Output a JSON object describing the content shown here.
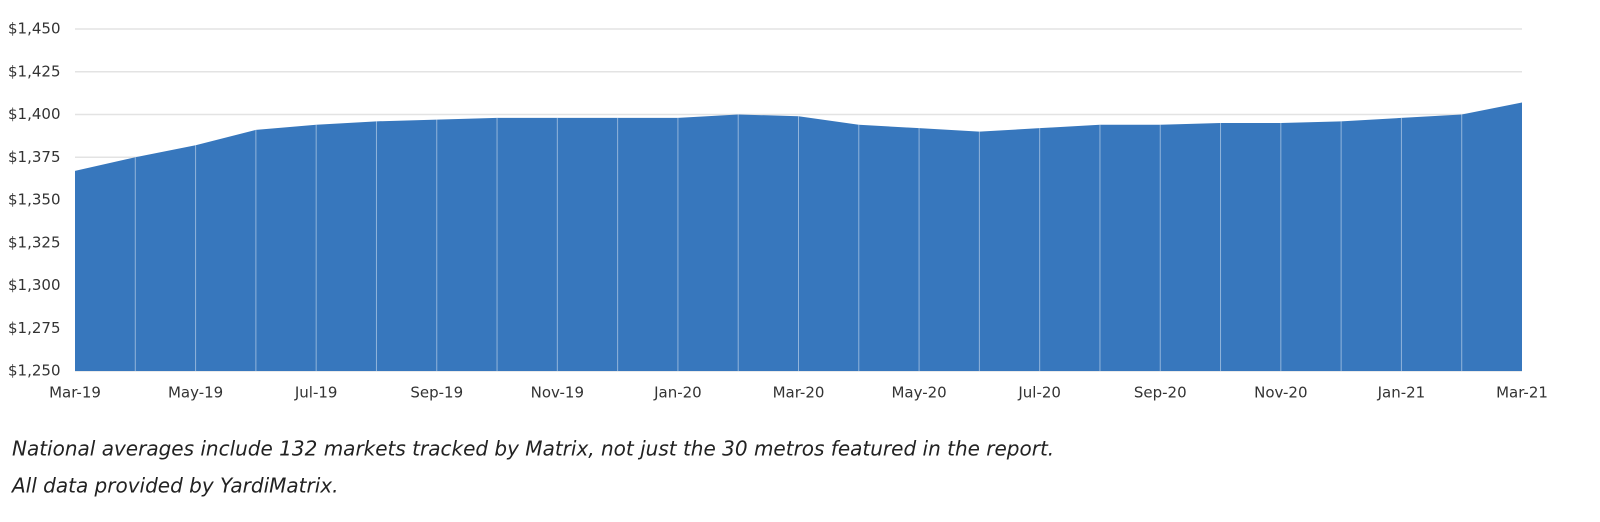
{
  "chart_data": {
    "type": "area",
    "categories": [
      "Mar-19",
      null,
      "May-19",
      null,
      "Jul-19",
      null,
      "Sep-19",
      null,
      "Nov-19",
      null,
      "Jan-20",
      null,
      "Mar-20",
      null,
      "May-20",
      null,
      "Jul-20",
      null,
      "Sep-20",
      null,
      "Nov-20",
      null,
      "Jan-21",
      null,
      "Mar-21"
    ],
    "values": [
      1367,
      1375,
      1382,
      1391,
      1394,
      1396,
      1397,
      1398,
      1398,
      1398,
      1398,
      1400,
      1399,
      1394,
      1392,
      1390,
      1392,
      1394,
      1394,
      1395,
      1395,
      1396,
      1398,
      1400,
      1407
    ],
    "color": "#3777bd",
    "ylim": [
      1250,
      1450
    ],
    "yticks": [
      {
        "value": 1250,
        "label": "$1,250"
      },
      {
        "value": 1275,
        "label": "$1,275"
      },
      {
        "value": 1300,
        "label": "$1,300"
      },
      {
        "value": 1325,
        "label": "$1,325"
      },
      {
        "value": 1350,
        "label": "$1,350"
      },
      {
        "value": 1375,
        "label": "$1,375"
      },
      {
        "value": 1400,
        "label": "$1,400"
      },
      {
        "value": 1425,
        "label": "$1,425"
      },
      {
        "value": 1450,
        "label": "$1,450"
      }
    ],
    "grid": true,
    "notes": [
      "National averages include 132 markets tracked by Matrix, not just the 30 metros featured in the report.",
      "All data provided by YardiMatrix."
    ]
  }
}
